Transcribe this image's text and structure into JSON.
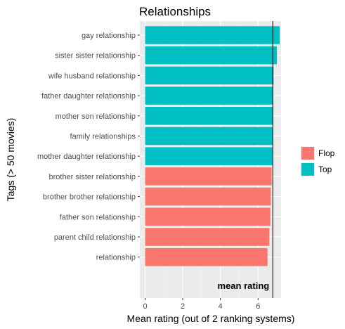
{
  "chart_data": {
    "type": "bar",
    "orientation": "horizontal",
    "title": "Relationships",
    "xlabel": "Mean rating (out of 2 ranking systems)",
    "ylabel": "Tags (> 50 movies)",
    "xlim": [
      0,
      7.4
    ],
    "x_ticks": [
      0,
      2,
      4,
      6
    ],
    "grid": true,
    "legend_position": "right",
    "legend": [
      {
        "name": "Flop",
        "color": "#F8766D"
      },
      {
        "name": "Top",
        "color": "#00BFC4"
      }
    ],
    "categories": [
      "gay relationship",
      "sister sister relationship",
      "wife husband relationship",
      "father daughter relationship",
      "mother son relationship",
      "family relationships",
      "mother daughter relationship",
      "brother sister relationship",
      "brother brother relationship",
      "father son relationship",
      "parent child relationship",
      "relationship"
    ],
    "values": [
      7.15,
      7.0,
      6.82,
      6.8,
      6.8,
      6.78,
      6.76,
      6.72,
      6.68,
      6.65,
      6.6,
      6.5
    ],
    "groups": [
      "Top",
      "Top",
      "Top",
      "Top",
      "Top",
      "Top",
      "Top",
      "Flop",
      "Flop",
      "Flop",
      "Flop",
      "Flop"
    ],
    "reference_line": {
      "value": 6.78,
      "label": "mean rating"
    }
  }
}
